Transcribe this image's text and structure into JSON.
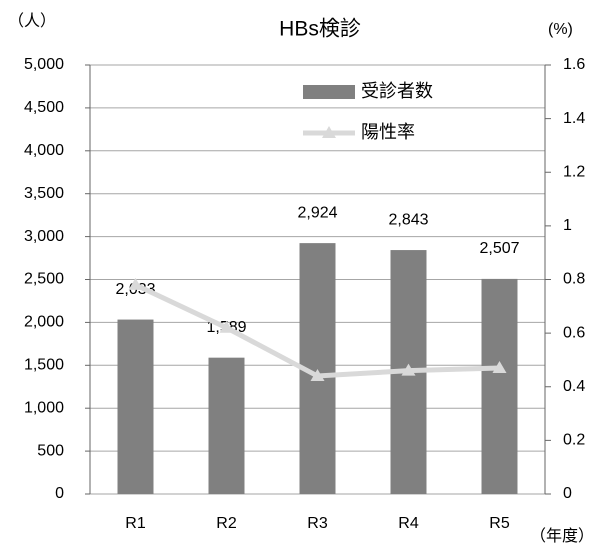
{
  "chart_data": {
    "type": "bar_line",
    "title": "HBs検診",
    "y_label": "（人）",
    "y2_label": "(%)",
    "x_label": "（年度）",
    "categories": [
      "R1",
      "R2",
      "R3",
      "R4",
      "R5"
    ],
    "series": [
      {
        "name": "受診者数",
        "type": "bar",
        "color": "#808080",
        "values": [
          2033,
          1589,
          2924,
          2843,
          2507
        ],
        "value_labels": [
          "2,033",
          "1,589",
          "2,924",
          "2,843",
          "2,507"
        ]
      },
      {
        "name": "陽性率",
        "type": "line",
        "axis": "y2",
        "color": "#d9d9d9",
        "values": [
          0.78,
          0.62,
          0.44,
          0.46,
          0.47
        ]
      }
    ],
    "ylim": [
      0,
      5000
    ],
    "yticks": [
      0,
      500,
      {
        "value": 1000,
        "label": "1,000"
      },
      {
        "value": 1500,
        "label": "1,500"
      },
      {
        "value": 2000,
        "label": "2,000"
      },
      {
        "value": 2500,
        "label": "2,500"
      },
      {
        "value": 3000,
        "label": "3,000"
      },
      {
        "value": 3500,
        "label": "3,500"
      },
      {
        "value": 4000,
        "label": "4,000"
      },
      {
        "value": 4500,
        "label": "4,500"
      },
      {
        "value": 5000,
        "label": "5,000"
      }
    ],
    "y2lim": [
      0,
      1.6
    ],
    "y2ticks": [
      0,
      0.2,
      0.4,
      0.6,
      0.8,
      1,
      1.2,
      1.4,
      1.6
    ],
    "grid": true,
    "legend": "upper right"
  }
}
